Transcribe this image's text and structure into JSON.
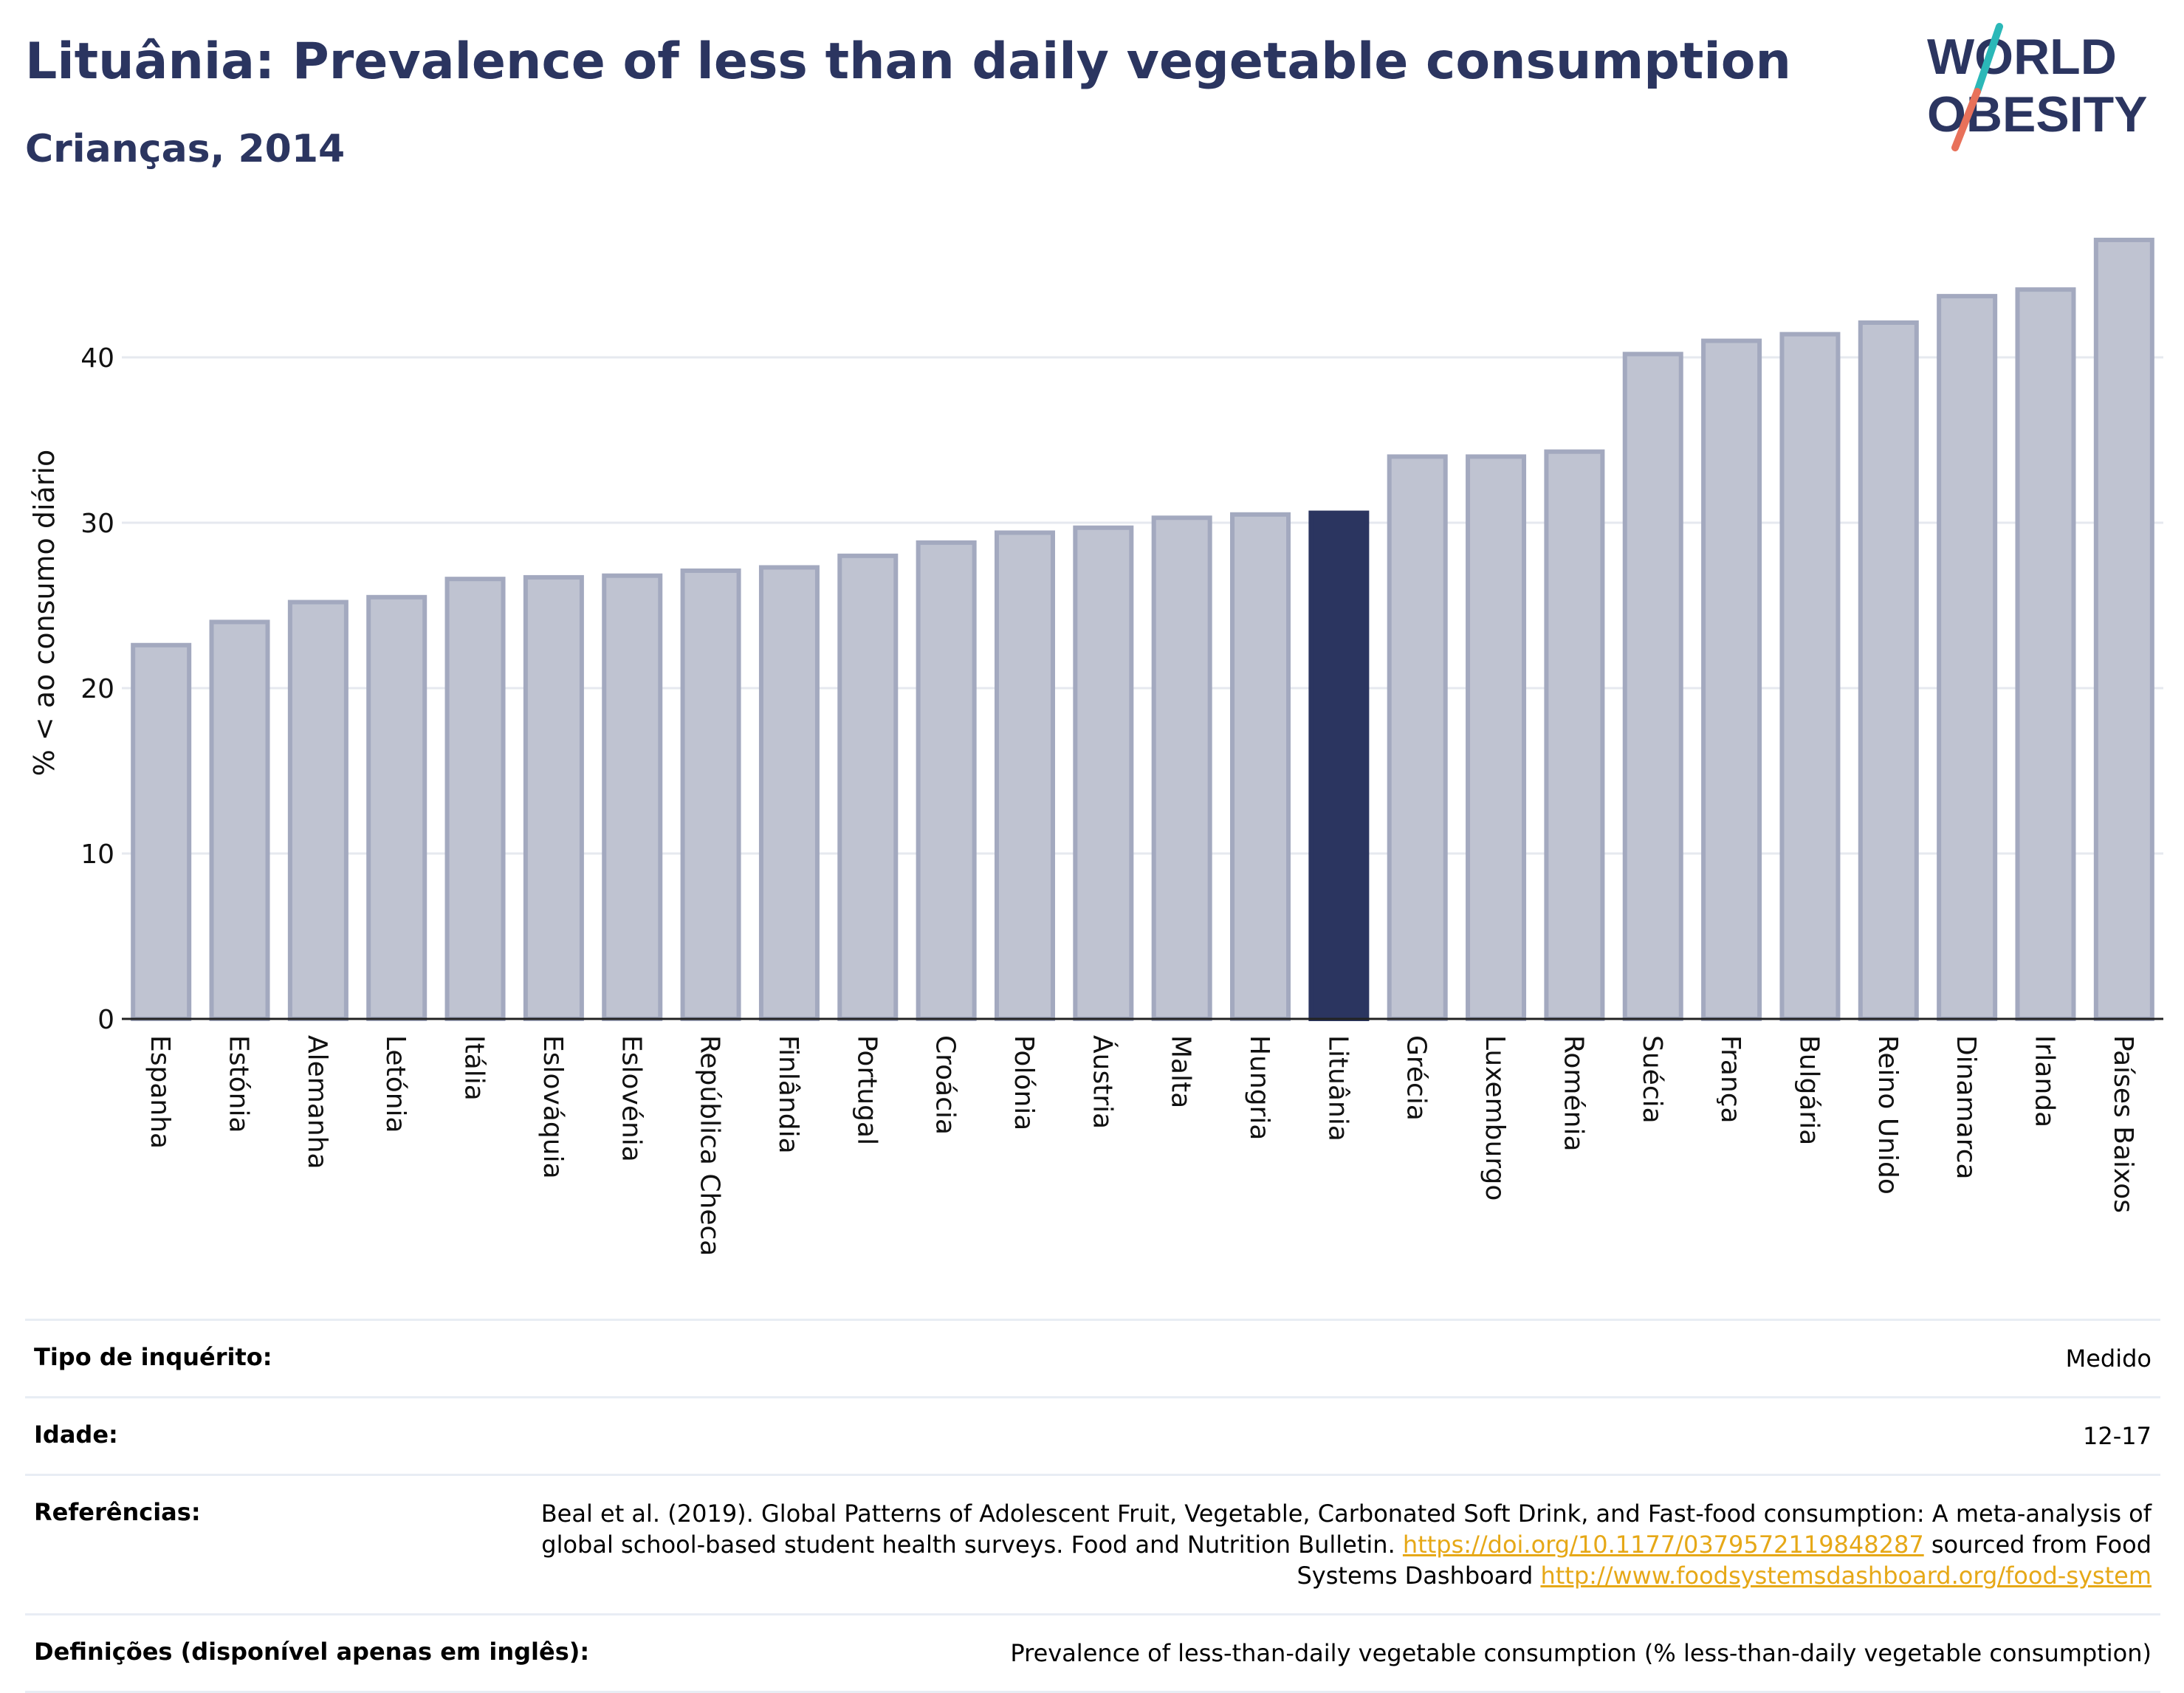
{
  "header": {
    "title": "Lituânia: Prevalence of less than daily vegetable consumption",
    "subtitle": "Crianças, 2014"
  },
  "logo": {
    "line1": "WORLD",
    "line2": "OBESITY",
    "slash_colors": [
      "#2bb8b8",
      "#e8715a"
    ]
  },
  "colors": {
    "highlight": "#2b3560",
    "bar": "#bfc3d1",
    "bar_border": "#a3a9bf",
    "link": "#e6a817"
  },
  "chart_data": {
    "type": "bar",
    "ylabel": "% < ao consumo diário",
    "ylim": [
      0,
      48
    ],
    "yticks": [
      0,
      10,
      20,
      30,
      40
    ],
    "grid": true,
    "highlight": "Lituânia",
    "categories": [
      "Espanha",
      "Estónia",
      "Alemanha",
      "Letónia",
      "Itália",
      "Eslováquia",
      "Eslovénia",
      "República Checa",
      "Finlândia",
      "Portugal",
      "Croácia",
      "Polónia",
      "Áustria",
      "Malta",
      "Hungria",
      "Lituânia",
      "Grécia",
      "Luxemburgo",
      "Roménia",
      "Suécia",
      "França",
      "Bulgária",
      "Reino Unido",
      "Dinamarca",
      "Irlanda",
      "Países Baixos"
    ],
    "values": [
      22.6,
      24.0,
      25.2,
      25.5,
      26.6,
      26.7,
      26.8,
      27.1,
      27.3,
      28.0,
      28.8,
      29.4,
      29.7,
      30.3,
      30.5,
      30.6,
      34.0,
      34.0,
      34.3,
      40.2,
      41.0,
      41.4,
      42.1,
      43.7,
      44.1,
      47.1
    ]
  },
  "info": {
    "survey_label": "Tipo de inquérito:",
    "survey_value": "Medido",
    "age_label": "Idade:",
    "age_value": "12-17",
    "refs_label": "Referências:",
    "refs_text1": "Beal et al. (2019). Global Patterns of Adolescent Fruit, Vegetable, Carbonated Soft Drink, and Fast-food consumption: A meta-analysis of global school-based student health surveys. Food and Nutrition Bulletin. ",
    "refs_link1": "https://doi.org/10.1177/0379572119848287",
    "refs_text2": " sourced from Food Systems Dashboard ",
    "refs_link2": "http://www.foodsystemsdashboard.org/food-system",
    "defs_label": "Definições (disponível apenas em inglês):",
    "defs_value": "Prevalence of less-than-daily vegetable consumption (% less-than-daily vegetable consumption)"
  }
}
